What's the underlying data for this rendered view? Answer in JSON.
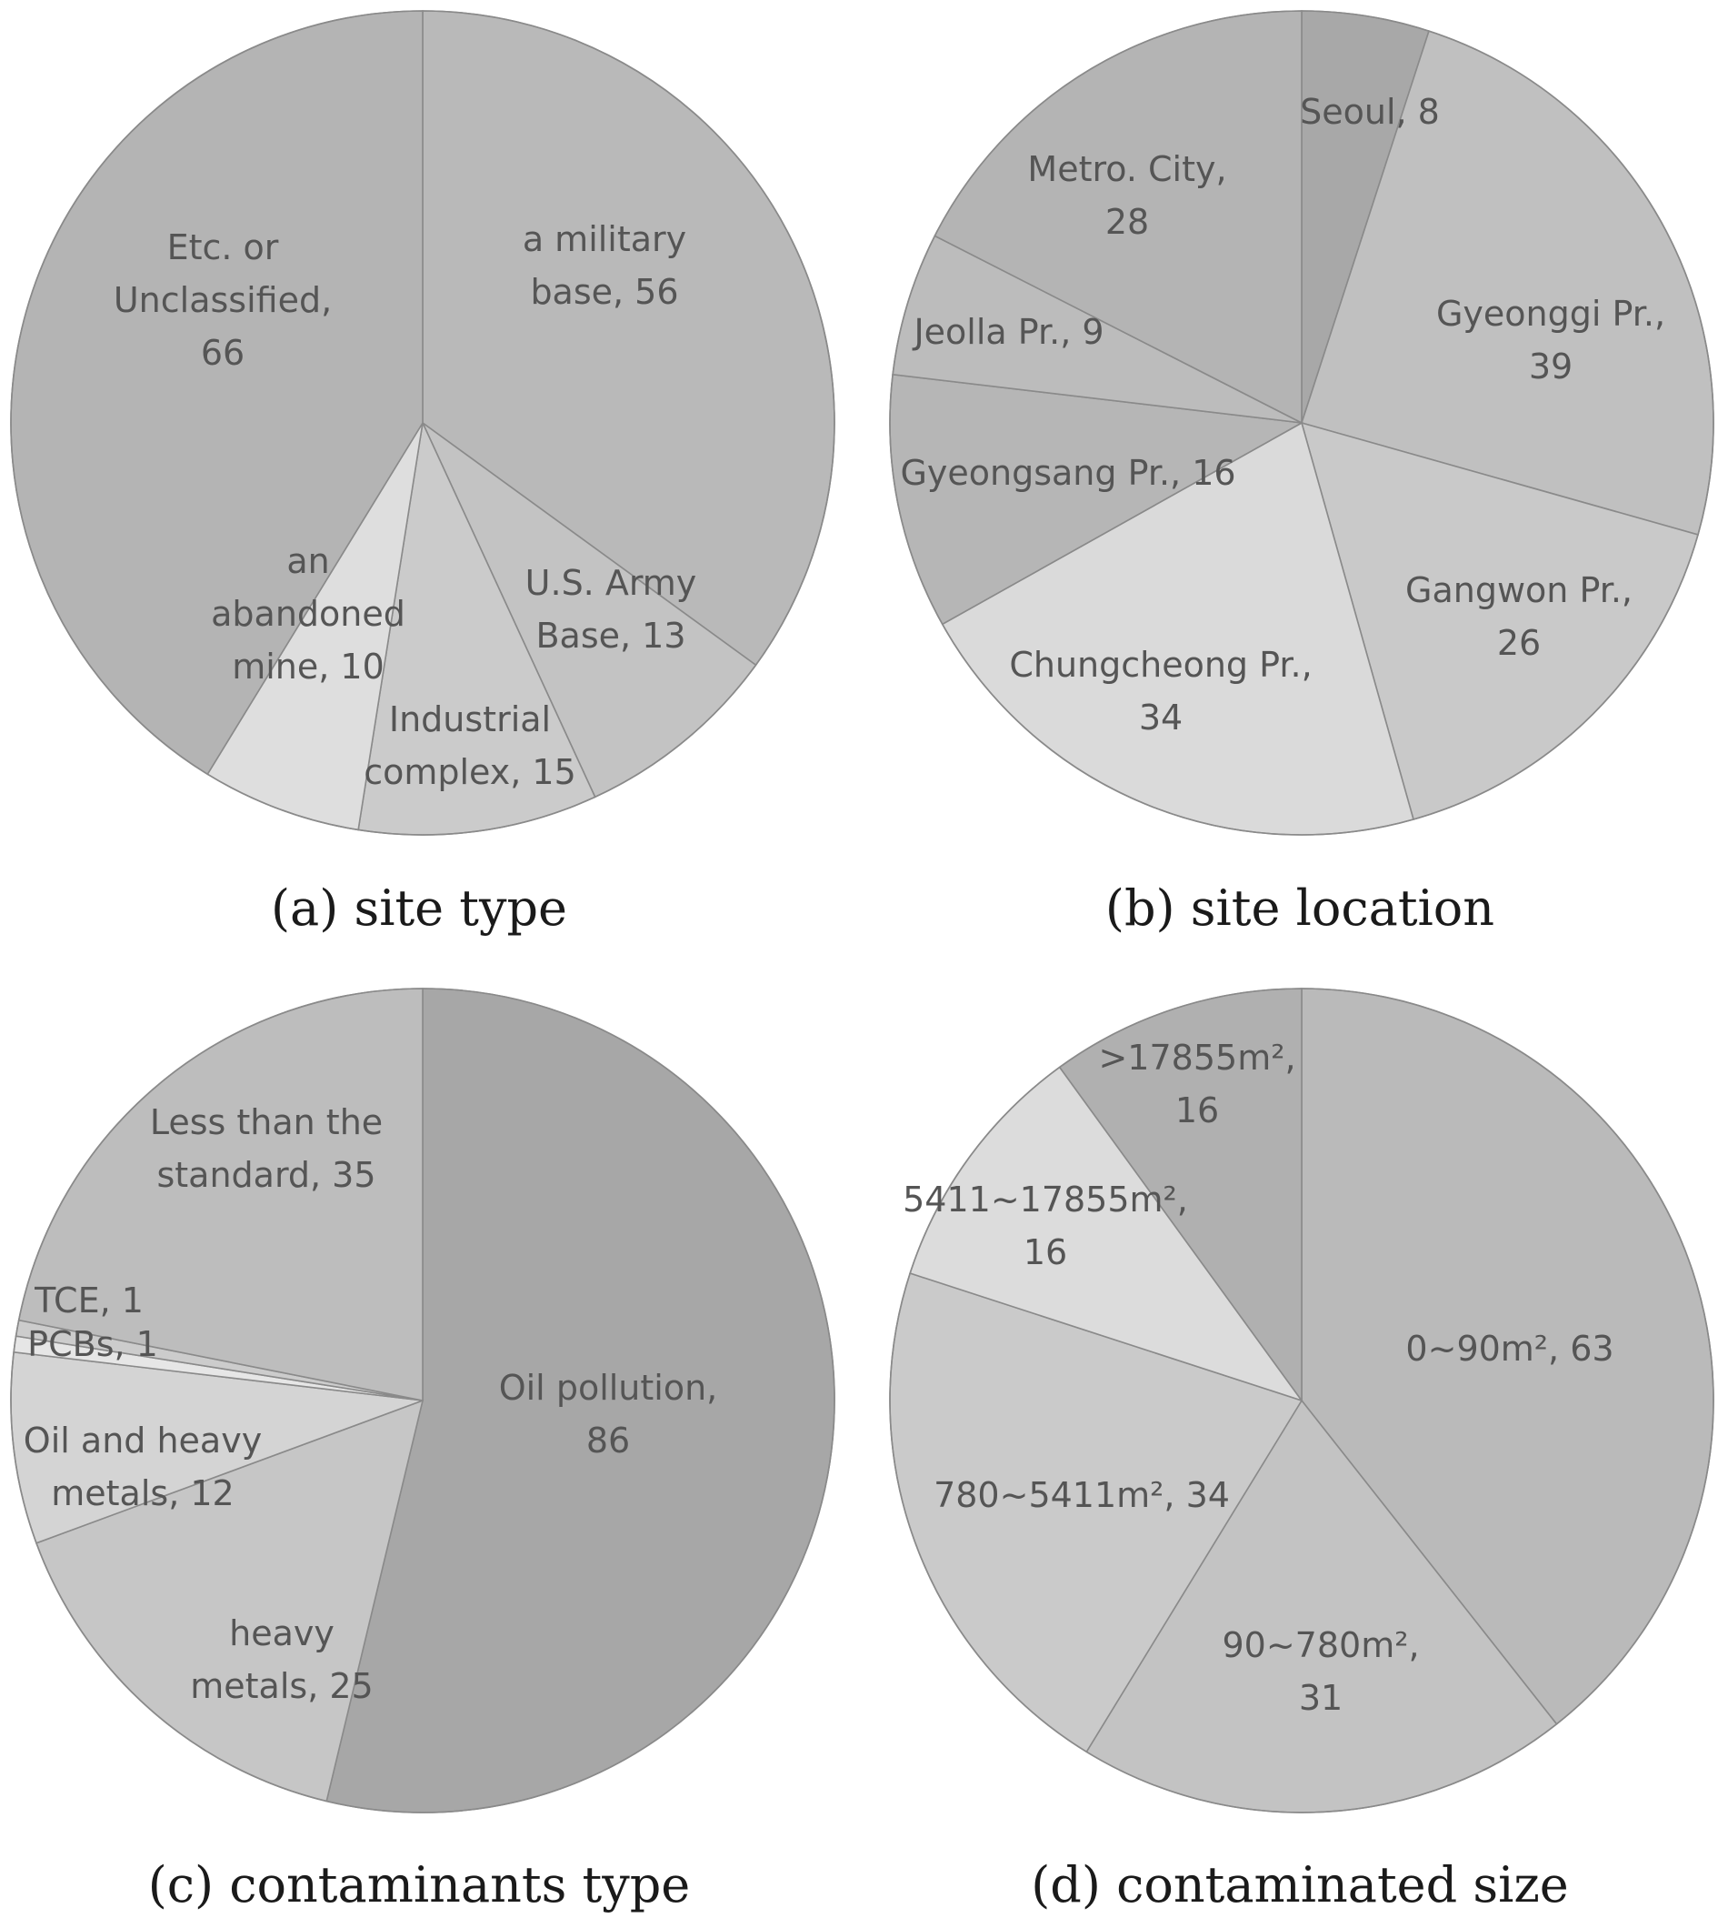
{
  "chart_data": [
    {
      "type": "pie",
      "caption": "(a)  site  type",
      "slices": [
        {
          "label_lines": [
            "a military",
            "base, 56"
          ],
          "value": 56,
          "color": "#b9b9b9"
        },
        {
          "label_lines": [
            "U.S. Army",
            "Base, 13"
          ],
          "value": 13,
          "color": "#c3c3c3"
        },
        {
          "label_lines": [
            "Industrial",
            "complex, 15"
          ],
          "value": 15,
          "color": "#cbcbcb"
        },
        {
          "label_lines": [
            "an",
            "abandoned",
            "mine, 10"
          ],
          "value": 10,
          "color": "#dedede"
        },
        {
          "label_lines": [
            "Etc. or",
            "Unclassified,",
            "66"
          ],
          "value": 66,
          "color": "#b4b4b4"
        }
      ]
    },
    {
      "type": "pie",
      "caption": "(b)  site  location",
      "slices": [
        {
          "label_lines": [
            "Seoul, 8"
          ],
          "value": 8,
          "color": "#a8a8a8"
        },
        {
          "label_lines": [
            "Gyeonggi Pr.,",
            "39"
          ],
          "value": 39,
          "color": "#c0c0c0"
        },
        {
          "label_lines": [
            "Gangwon Pr.,",
            "26"
          ],
          "value": 26,
          "color": "#c9c9c9"
        },
        {
          "label_lines": [
            "Chungcheong Pr.,",
            "34"
          ],
          "value": 34,
          "color": "#dadada"
        },
        {
          "label_lines": [
            "Gyeongsang Pr., 16"
          ],
          "value": 16,
          "color": "#b6b6b6"
        },
        {
          "label_lines": [
            "Jeolla Pr., 9"
          ],
          "value": 9,
          "color": "#bcbcbc"
        },
        {
          "label_lines": [
            "Metro. City,",
            "28"
          ],
          "value": 28,
          "color": "#b4b4b4"
        }
      ]
    },
    {
      "type": "pie",
      "caption": "(c)  contaminants  type",
      "slices": [
        {
          "label_lines": [
            "Oil pollution,",
            "86"
          ],
          "value": 86,
          "color": "#a7a7a7"
        },
        {
          "label_lines": [
            "heavy",
            "metals, 25"
          ],
          "value": 25,
          "color": "#c6c6c6"
        },
        {
          "label_lines": [
            "Oil and heavy",
            "metals, 12"
          ],
          "value": 12,
          "color": "#d4d4d4"
        },
        {
          "label_lines": [
            "PCBs, 1"
          ],
          "value": 1,
          "color": "#e6e6e6"
        },
        {
          "label_lines": [
            "TCE, 1"
          ],
          "value": 1,
          "color": "#cccccc"
        },
        {
          "label_lines": [
            "Less than the",
            "standard, 35"
          ],
          "value": 35,
          "color": "#bdbdbd"
        }
      ]
    },
    {
      "type": "pie",
      "caption": "(d)  contaminated  size",
      "slices": [
        {
          "label_lines": [
            "0~90m², 63"
          ],
          "value": 63,
          "color": "#bababa"
        },
        {
          "label_lines": [
            "90~780m²,",
            "31"
          ],
          "value": 31,
          "color": "#c3c3c3"
        },
        {
          "label_lines": [
            "780~5411m², 34"
          ],
          "value": 34,
          "color": "#cacaca"
        },
        {
          "label_lines": [
            "5411~17855m²,",
            "16"
          ],
          "value": 16,
          "color": "#dcdcdc"
        },
        {
          "label_lines": [
            ">17855m²,",
            "16"
          ],
          "value": 16,
          "color": "#b0b0b0"
        }
      ]
    }
  ]
}
